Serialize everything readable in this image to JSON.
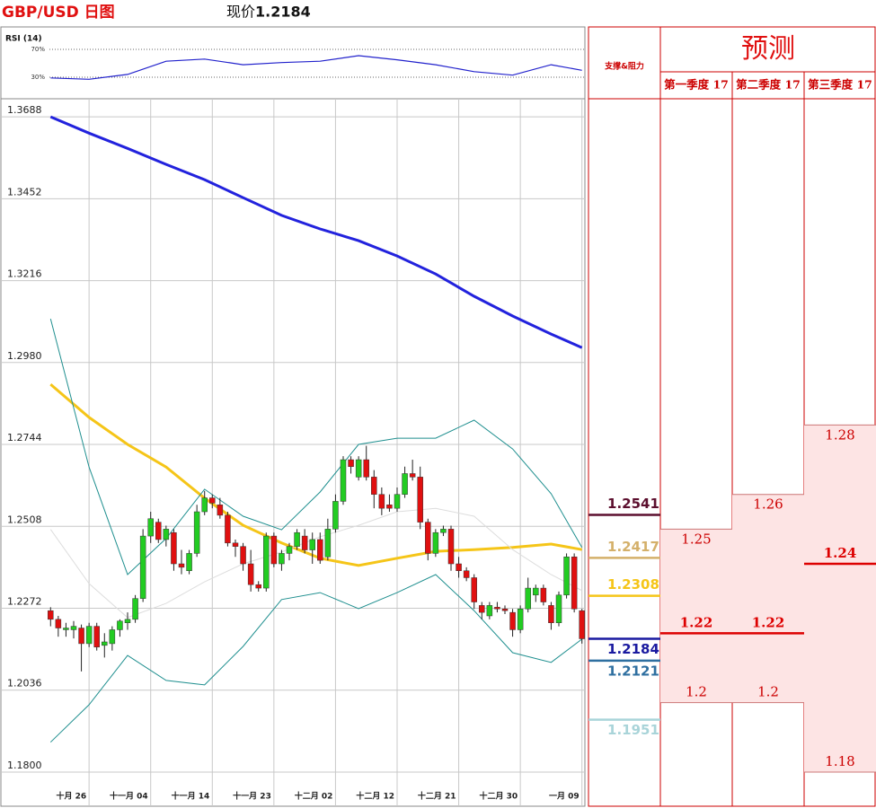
{
  "header": {
    "title": "GBP/USD 日图",
    "current_price_label": "现价",
    "current_price": 1.2184
  },
  "chart_data": [
    {
      "type": "line",
      "title": "RSI (14)",
      "ylim": [
        0,
        100
      ],
      "yticks": [
        {
          "value": 70,
          "label": "70%"
        },
        {
          "value": 30,
          "label": "30%"
        }
      ],
      "x": [
        0,
        5,
        10,
        15,
        20,
        25,
        30,
        35,
        40,
        45,
        50,
        55,
        60,
        65,
        69
      ],
      "values": [
        29,
        27,
        34,
        53,
        56,
        48,
        51,
        53,
        61,
        55,
        48,
        38,
        33,
        48,
        40
      ],
      "color": "#2222cc"
    },
    {
      "type": "candlestick",
      "categories": [
        null,
        null,
        null,
        null,
        null,
        "十月 26",
        null,
        null,
        null,
        null,
        null,
        null,
        null,
        "十一月 04",
        null,
        null,
        null,
        null,
        null,
        null,
        null,
        "十一月 14",
        null,
        null,
        null,
        null,
        null,
        null,
        null,
        "十一月 23",
        null,
        null,
        null,
        null,
        null,
        null,
        null,
        "十二月 02",
        null,
        null,
        null,
        null,
        null,
        null,
        null,
        "十二月 12",
        null,
        null,
        null,
        null,
        null,
        null,
        null,
        "十二月 21",
        null,
        null,
        null,
        null,
        null,
        null,
        null,
        "十二月 30",
        null,
        null,
        null,
        null,
        null,
        null,
        null,
        "一月 09"
      ],
      "open": [
        1.2265,
        1.224,
        1.221,
        1.221,
        1.2215,
        1.217,
        1.222,
        1.2165,
        1.217,
        1.221,
        1.223,
        1.224,
        1.23,
        1.248,
        1.252,
        1.247,
        1.249,
        1.24,
        1.238,
        1.243,
        1.255,
        1.259,
        1.257,
        1.254,
        1.246,
        1.245,
        1.24,
        1.234,
        1.233,
        1.248,
        1.24,
        1.243,
        1.245,
        1.248,
        1.244,
        1.247,
        1.242,
        1.25,
        1.258,
        1.27,
        1.265,
        1.27,
        1.265,
        1.26,
        1.257,
        1.256,
        1.26,
        1.266,
        1.265,
        1.252,
        1.243,
        1.249,
        1.25,
        1.24,
        1.238,
        1.236,
        1.228,
        1.225,
        1.2275,
        1.227,
        1.226,
        1.221,
        1.227,
        1.231,
        1.233,
        1.228,
        1.223,
        1.231,
        1.242,
        1.2265
      ],
      "high": [
        1.2275,
        1.225,
        1.223,
        1.2235,
        1.2225,
        1.223,
        1.223,
        1.22,
        1.222,
        1.224,
        1.226,
        1.231,
        1.25,
        1.255,
        1.253,
        1.251,
        1.25,
        1.244,
        1.244,
        1.257,
        1.261,
        1.26,
        1.259,
        1.255,
        1.247,
        1.246,
        1.244,
        1.235,
        1.249,
        1.249,
        1.244,
        1.246,
        1.25,
        1.25,
        1.249,
        1.249,
        1.253,
        1.26,
        1.271,
        1.271,
        1.271,
        1.274,
        1.267,
        1.262,
        1.26,
        1.262,
        1.268,
        1.27,
        1.268,
        1.253,
        1.25,
        1.251,
        1.251,
        1.242,
        1.239,
        1.237,
        1.229,
        1.229,
        1.229,
        1.228,
        1.227,
        1.228,
        1.236,
        1.234,
        1.234,
        1.229,
        1.232,
        1.243,
        1.243,
        1.227
      ],
      "low": [
        1.222,
        1.219,
        1.219,
        1.2185,
        1.209,
        1.216,
        1.215,
        1.213,
        1.215,
        1.219,
        1.221,
        1.223,
        1.229,
        1.246,
        1.246,
        1.245,
        1.238,
        1.237,
        1.237,
        1.242,
        1.254,
        1.256,
        1.253,
        1.245,
        1.242,
        1.238,
        1.232,
        1.232,
        1.232,
        1.239,
        1.238,
        1.241,
        1.244,
        1.243,
        1.24,
        1.24,
        1.241,
        1.249,
        1.257,
        1.266,
        1.264,
        1.264,
        1.256,
        1.254,
        1.255,
        1.255,
        1.259,
        1.264,
        1.25,
        1.241,
        1.242,
        1.248,
        1.238,
        1.236,
        1.235,
        1.227,
        1.224,
        1.224,
        1.226,
        1.2255,
        1.219,
        1.22,
        1.226,
        1.229,
        1.228,
        1.221,
        1.222,
        1.23,
        1.226,
        1.217
      ],
      "close": [
        1.224,
        1.2215,
        1.2215,
        1.222,
        1.217,
        1.222,
        1.216,
        1.2175,
        1.221,
        1.2235,
        1.224,
        1.23,
        1.248,
        1.253,
        1.247,
        1.25,
        1.24,
        1.239,
        1.243,
        1.255,
        1.259,
        1.2575,
        1.254,
        1.246,
        1.245,
        1.24,
        1.234,
        1.233,
        1.248,
        1.24,
        1.243,
        1.245,
        1.249,
        1.244,
        1.247,
        1.241,
        1.25,
        1.258,
        1.27,
        1.268,
        1.27,
        1.265,
        1.26,
        1.256,
        1.256,
        1.26,
        1.266,
        1.265,
        1.252,
        1.243,
        1.249,
        1.25,
        1.24,
        1.238,
        1.236,
        1.229,
        1.226,
        1.228,
        1.227,
        1.2265,
        1.221,
        1.227,
        1.233,
        1.233,
        1.229,
        1.223,
        1.231,
        1.242,
        1.227,
        1.2184
      ],
      "up_color": "#22cc22",
      "down_color": "#e01010",
      "ylim": [
        1.1774,
        1.374
      ],
      "yticks": [
        1.3688,
        1.3452,
        1.3216,
        {
          "value": 1.298,
          "label": "1.2980"
        },
        1.2744,
        1.2508,
        1.2272,
        1.2036,
        {
          "value": 1.18,
          "label": "1.1800"
        }
      ],
      "grid": true,
      "overlays": [
        {
          "color": "#2222dd",
          "width": 3,
          "x": [
            0,
            5,
            10,
            15,
            20,
            25,
            30,
            35,
            40,
            45,
            50,
            55,
            60,
            65,
            69
          ],
          "values": [
            1.3688,
            1.3641,
            1.3597,
            1.3551,
            1.3507,
            1.3455,
            1.3404,
            1.3365,
            1.3331,
            1.3287,
            1.3235,
            1.3171,
            1.3114,
            1.3062,
            1.3023
          ]
        },
        {
          "color": "#f5c518",
          "width": 3,
          "x": [
            0,
            5,
            10,
            15,
            20,
            25,
            30,
            35,
            40,
            45,
            50,
            55,
            60,
            65,
            69
          ],
          "values": [
            1.2917,
            1.2822,
            1.2744,
            1.2679,
            1.2589,
            1.2511,
            1.246,
            1.2416,
            1.2395,
            1.2416,
            1.2436,
            1.2441,
            1.2447,
            1.2457,
            1.2441
          ]
        },
        {
          "color": "#1f8f8f",
          "width": 1,
          "x": [
            0,
            5,
            10,
            15,
            20,
            25,
            30,
            35,
            40,
            45,
            50,
            55,
            60,
            65,
            69
          ],
          "values": [
            1.3106,
            1.2679,
            1.2369,
            1.2473,
            1.2615,
            1.2537,
            1.2498,
            1.2607,
            1.2744,
            1.2762,
            1.2762,
            1.2814,
            1.2731,
            1.2602,
            1.2447
          ]
        },
        {
          "color": "#1f8f8f",
          "width": 1,
          "x": [
            0,
            5,
            10,
            15,
            20,
            25,
            30,
            35,
            40,
            45,
            50,
            55,
            60,
            65,
            69
          ],
          "values": [
            1.1886,
            1.1994,
            1.2136,
            1.2064,
            1.2051,
            1.2162,
            1.2297,
            1.2317,
            1.2271,
            1.2317,
            1.2369,
            1.2265,
            1.2144,
            1.2116,
            1.2183
          ]
        },
        {
          "color": "#dddddd",
          "width": 1,
          "x": [
            0,
            5,
            10,
            15,
            20,
            25,
            30,
            35,
            40,
            45,
            50,
            55,
            60,
            65,
            69
          ],
          "values": [
            1.2499,
            1.2343,
            1.2245,
            1.2286,
            1.2348,
            1.24,
            1.2434,
            1.2478,
            1.2511,
            1.255,
            1.256,
            1.2537,
            1.2441,
            1.2369,
            1.2323
          ]
        }
      ]
    }
  ],
  "levels": {
    "title": "支撑&阻力",
    "items": [
      {
        "value": 1.2541,
        "color": "#5c0f2e"
      },
      {
        "value": 1.2417,
        "color": "#d4b06a"
      },
      {
        "value": 1.2308,
        "color": "#f5c518"
      },
      {
        "value": 1.2184,
        "color": "#1a1aa0"
      },
      {
        "value": 1.2121,
        "color": "#2e6fa0"
      },
      {
        "value": 1.1951,
        "color": "#a9d4d9"
      }
    ]
  },
  "forecast": {
    "title": "预测",
    "columns": [
      {
        "name": "第一季度 17",
        "high": 1.25,
        "mid": 1.22,
        "low": 1.2
      },
      {
        "name": "第二季度 17",
        "high": 1.26,
        "mid": 1.22,
        "low": 1.2
      },
      {
        "name": "第三季度 17",
        "high": 1.28,
        "mid": 1.24,
        "low": 1.18
      }
    ]
  }
}
